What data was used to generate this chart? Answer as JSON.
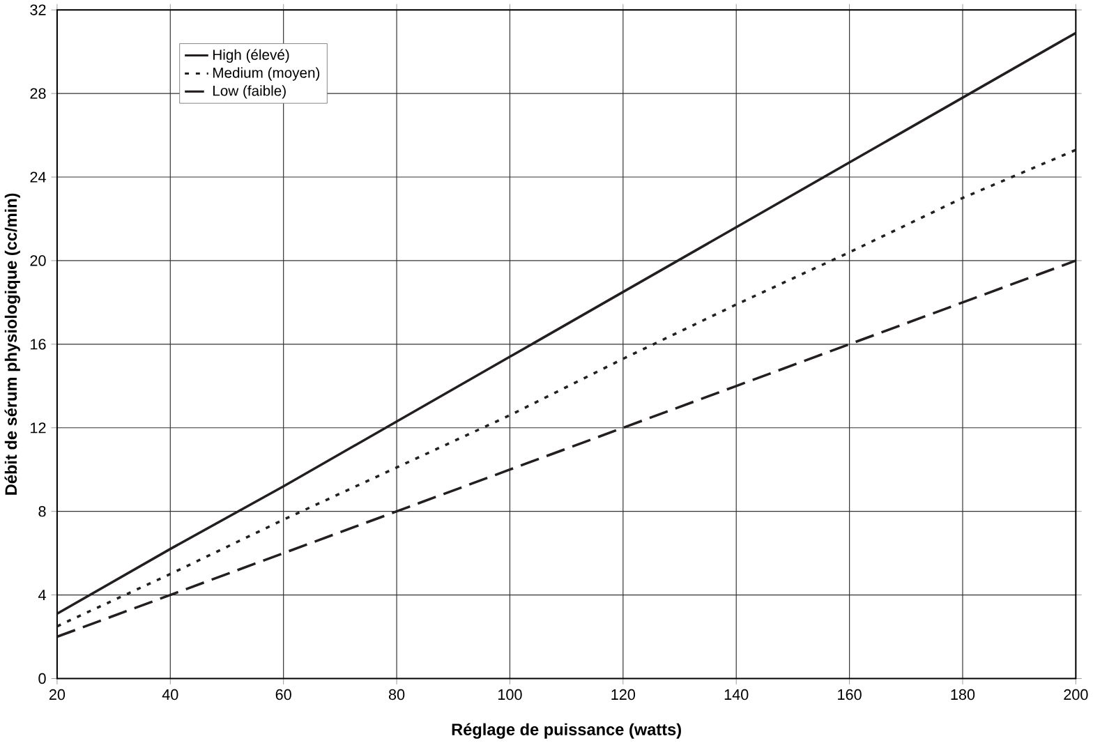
{
  "chart_data": {
    "type": "line",
    "xlabel": "Réglage de puissance (watts)",
    "ylabel": "Débit de sérum physiologique (cc/min)",
    "x": [
      20,
      40,
      60,
      80,
      100,
      120,
      140,
      160,
      180,
      200
    ],
    "series": [
      {
        "name": "High (élevé)",
        "color": "#231f20",
        "line_style": "solid",
        "values": [
          3.1,
          6.2,
          9.2,
          12.3,
          15.4,
          18.5,
          21.6,
          24.7,
          27.8,
          30.9
        ]
      },
      {
        "name": "Medium (moyen)",
        "color": "#231f20",
        "line_style": "dotted",
        "values": [
          2.5,
          5.0,
          7.6,
          10.1,
          12.6,
          15.3,
          17.9,
          20.4,
          23.0,
          25.3
        ]
      },
      {
        "name": "Low (faible)",
        "color": "#231f20",
        "line_style": "dashed",
        "values": [
          2,
          4,
          6,
          8,
          10,
          12,
          14,
          16,
          18,
          20
        ]
      }
    ],
    "xlim": [
      20,
      200
    ],
    "xticks": [
      20,
      40,
      60,
      80,
      100,
      120,
      140,
      160,
      180,
      200
    ],
    "ylim": [
      0,
      32
    ],
    "yticks": [
      0,
      4,
      8,
      12,
      16,
      20,
      24,
      28,
      32
    ],
    "grid": true,
    "legend": "top left",
    "marker": "none"
  }
}
